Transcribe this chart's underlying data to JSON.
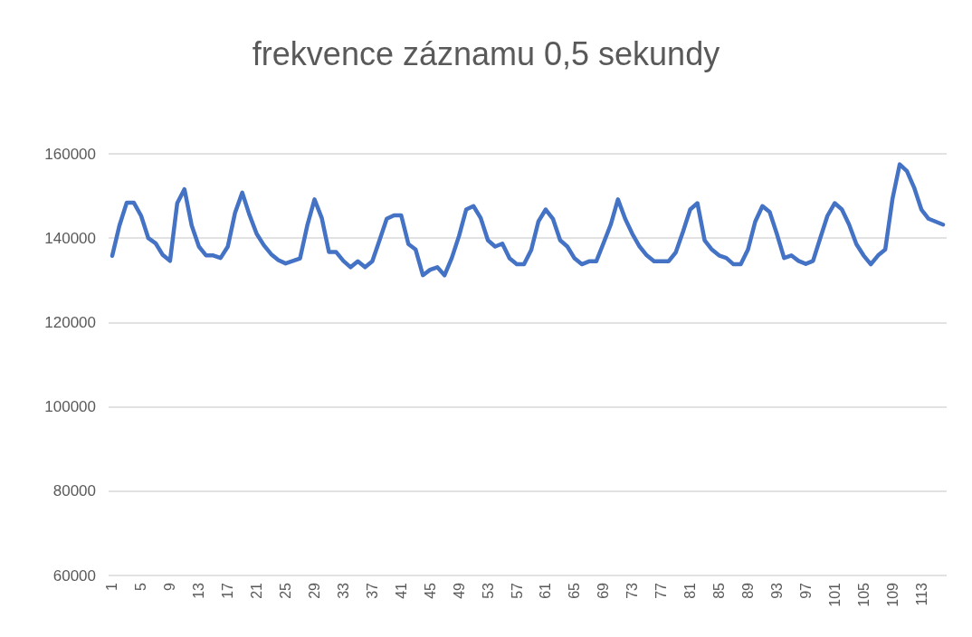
{
  "chart_data": {
    "type": "line",
    "title": "frekvence záznamu 0,5 sekundy",
    "categories": [
      "1",
      null,
      null,
      null,
      "5",
      null,
      null,
      null,
      "9",
      null,
      null,
      null,
      "13",
      null,
      null,
      null,
      "17",
      null,
      null,
      null,
      "21",
      null,
      null,
      null,
      "25",
      null,
      null,
      null,
      "29",
      null,
      null,
      null,
      "33",
      null,
      null,
      null,
      "37",
      null,
      null,
      null,
      "41",
      null,
      null,
      null,
      "45",
      null,
      null,
      null,
      "49",
      null,
      null,
      null,
      "53",
      null,
      null,
      null,
      "57",
      null,
      null,
      null,
      "61",
      null,
      null,
      null,
      "65",
      null,
      null,
      null,
      "69",
      null,
      null,
      null,
      "73",
      null,
      null,
      null,
      "77",
      null,
      null,
      null,
      "81",
      null,
      null,
      null,
      "85",
      null,
      null,
      null,
      "89",
      null,
      null,
      null,
      "93",
      null,
      null,
      null,
      "97",
      null,
      null,
      null,
      "101",
      null,
      null,
      null,
      "105",
      null,
      null,
      null,
      "109",
      null,
      null,
      null,
      "113",
      null,
      null,
      null
    ],
    "series": [
      {
        "color": "#4472c4",
        "values": [
          135800,
          143000,
          148400,
          148400,
          145300,
          140000,
          138800,
          136000,
          134600,
          148300,
          151600,
          143000,
          138000,
          135900,
          135900,
          135300,
          138000,
          146000,
          150800,
          145500,
          141000,
          138300,
          136200,
          134800,
          134000,
          134600,
          135200,
          143000,
          149200,
          144800,
          136700,
          136700,
          134600,
          133100,
          134500,
          133100,
          134500,
          139500,
          144600,
          145400,
          145400,
          138600,
          137300,
          131200,
          132500,
          133100,
          131200,
          135300,
          140500,
          146800,
          147600,
          144800,
          139500,
          138000,
          138700,
          135200,
          133800,
          133800,
          137200,
          144000,
          146800,
          144600,
          139500,
          138000,
          135200,
          133800,
          134500,
          134500,
          138800,
          143200,
          149200,
          144600,
          141000,
          138000,
          135900,
          134500,
          134500,
          134500,
          136600,
          141500,
          146800,
          148300,
          139500,
          137300,
          135900,
          135300,
          133800,
          133800,
          137300,
          143900,
          147600,
          146200,
          141000,
          135300,
          135900,
          134600,
          133900,
          134600,
          140000,
          145300,
          148300,
          146800,
          143200,
          138600,
          135900,
          133800,
          135900,
          137300,
          149300,
          157500,
          155900,
          152000,
          146800,
          144600,
          143900,
          143200
        ]
      }
    ],
    "ylim": [
      60000,
      160000
    ],
    "yticks": [
      60000,
      80000,
      100000,
      120000,
      140000,
      160000
    ],
    "grid": "y",
    "marker": "none",
    "line_style": "solid"
  }
}
